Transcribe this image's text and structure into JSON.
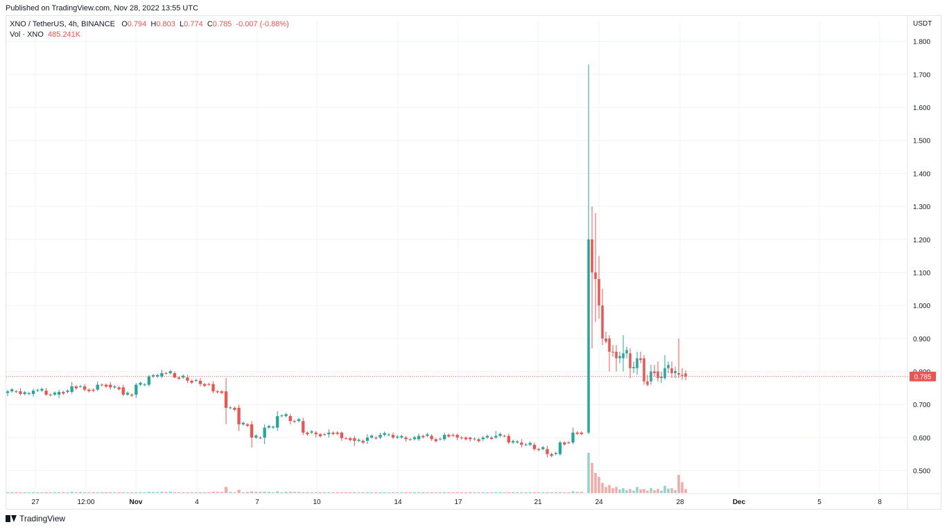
{
  "header": {
    "published": "Published on TradingView.com, Nov 28, 2022 13:55 UTC"
  },
  "legend": {
    "symbol": "XNO / TetherUS, 4h, BINANCE",
    "o_label": "O",
    "o_value": "0.794",
    "h_label": "H",
    "h_value": "0.803",
    "l_label": "L",
    "l_value": "0.774",
    "c_label": "C",
    "c_value": "0.785",
    "change": "-0.007 (-0.88%)",
    "vol_label": "Vol · XNO",
    "vol_value": "485.241K"
  },
  "footer": {
    "brand": "TradingView"
  },
  "colors": {
    "up": "#26a69a",
    "down": "#ef5350",
    "up_vol": "#8fd3c9",
    "down_vol": "#f6a8a6",
    "grid": "#f0f3fa",
    "text": "#131722"
  },
  "chart_data": {
    "type": "candlestick",
    "pair": "XNO / TetherUS",
    "interval": "4h",
    "exchange": "BINANCE",
    "currency_label": "USDT",
    "y_ticks": [
      "1.800",
      "1.700",
      "1.600",
      "1.500",
      "1.400",
      "1.300",
      "1.200",
      "1.100",
      "1.000",
      "0.900",
      "0.800",
      "0.700",
      "0.600",
      "0.500"
    ],
    "ylim": [
      0.43,
      1.86
    ],
    "x_ticks": [
      "27",
      "12:00",
      "Nov",
      "4",
      "7",
      "10",
      "14",
      "17",
      "21",
      "24",
      "28",
      "Dec",
      "5",
      "8"
    ],
    "bold_x_ticks": [
      "Nov",
      "Dec"
    ],
    "last_price": "0.785",
    "grid": true,
    "ohlc_anchors": [
      {
        "o": 0.735,
        "h": 0.745,
        "l": 0.725,
        "c": 0.74
      },
      {
        "o": 0.74,
        "h": 0.75,
        "l": 0.728,
        "c": 0.732
      },
      {
        "o": 0.732,
        "h": 0.748,
        "l": 0.724,
        "c": 0.742
      },
      {
        "o": 0.742,
        "h": 0.75,
        "l": 0.726,
        "c": 0.73
      },
      {
        "o": 0.73,
        "h": 0.745,
        "l": 0.72,
        "c": 0.738
      },
      {
        "o": 0.738,
        "h": 0.768,
        "l": 0.732,
        "c": 0.755
      },
      {
        "o": 0.755,
        "h": 0.762,
        "l": 0.74,
        "c": 0.745
      },
      {
        "o": 0.745,
        "h": 0.77,
        "l": 0.74,
        "c": 0.76
      },
      {
        "o": 0.76,
        "h": 0.768,
        "l": 0.745,
        "c": 0.752
      },
      {
        "o": 0.752,
        "h": 0.76,
        "l": 0.725,
        "c": 0.73
      },
      {
        "o": 0.73,
        "h": 0.765,
        "l": 0.72,
        "c": 0.76
      },
      {
        "o": 0.76,
        "h": 0.79,
        "l": 0.755,
        "c": 0.785
      },
      {
        "o": 0.785,
        "h": 0.805,
        "l": 0.78,
        "c": 0.795
      },
      {
        "o": 0.795,
        "h": 0.8,
        "l": 0.78,
        "c": 0.782
      },
      {
        "o": 0.782,
        "h": 0.79,
        "l": 0.765,
        "c": 0.772
      },
      {
        "o": 0.772,
        "h": 0.78,
        "l": 0.755,
        "c": 0.762
      },
      {
        "o": 0.762,
        "h": 0.77,
        "l": 0.735,
        "c": 0.74
      },
      {
        "o": 0.74,
        "h": 0.78,
        "l": 0.64,
        "c": 0.69
      },
      {
        "o": 0.69,
        "h": 0.7,
        "l": 0.62,
        "c": 0.64
      },
      {
        "o": 0.64,
        "h": 0.65,
        "l": 0.57,
        "c": 0.6
      },
      {
        "o": 0.6,
        "h": 0.64,
        "l": 0.58,
        "c": 0.63
      },
      {
        "o": 0.63,
        "h": 0.68,
        "l": 0.62,
        "c": 0.665
      },
      {
        "o": 0.665,
        "h": 0.672,
        "l": 0.64,
        "c": 0.65
      },
      {
        "o": 0.65,
        "h": 0.66,
        "l": 0.608,
        "c": 0.615
      },
      {
        "o": 0.615,
        "h": 0.62,
        "l": 0.6,
        "c": 0.61
      },
      {
        "o": 0.61,
        "h": 0.625,
        "l": 0.6,
        "c": 0.615
      },
      {
        "o": 0.615,
        "h": 0.618,
        "l": 0.59,
        "c": 0.598
      },
      {
        "o": 0.598,
        "h": 0.605,
        "l": 0.575,
        "c": 0.59
      },
      {
        "o": 0.59,
        "h": 0.61,
        "l": 0.58,
        "c": 0.6
      },
      {
        "o": 0.6,
        "h": 0.615,
        "l": 0.595,
        "c": 0.608
      },
      {
        "o": 0.608,
        "h": 0.615,
        "l": 0.595,
        "c": 0.6
      },
      {
        "o": 0.6,
        "h": 0.605,
        "l": 0.588,
        "c": 0.595
      },
      {
        "o": 0.595,
        "h": 0.612,
        "l": 0.59,
        "c": 0.605
      },
      {
        "o": 0.605,
        "h": 0.61,
        "l": 0.59,
        "c": 0.595
      },
      {
        "o": 0.595,
        "h": 0.615,
        "l": 0.59,
        "c": 0.608
      },
      {
        "o": 0.608,
        "h": 0.612,
        "l": 0.592,
        "c": 0.6
      },
      {
        "o": 0.6,
        "h": 0.602,
        "l": 0.588,
        "c": 0.595
      },
      {
        "o": 0.595,
        "h": 0.605,
        "l": 0.59,
        "c": 0.6
      },
      {
        "o": 0.6,
        "h": 0.62,
        "l": 0.596,
        "c": 0.605
      },
      {
        "o": 0.605,
        "h": 0.612,
        "l": 0.58,
        "c": 0.585
      },
      {
        "o": 0.585,
        "h": 0.595,
        "l": 0.57,
        "c": 0.578
      },
      {
        "o": 0.578,
        "h": 0.585,
        "l": 0.56,
        "c": 0.565
      },
      {
        "o": 0.565,
        "h": 0.575,
        "l": 0.54,
        "c": 0.55
      },
      {
        "o": 0.55,
        "h": 0.59,
        "l": 0.545,
        "c": 0.585
      },
      {
        "o": 0.585,
        "h": 0.63,
        "l": 0.58,
        "c": 0.615
      },
      {
        "o": 0.615,
        "h": 1.73,
        "l": 0.61,
        "c": 1.2
      },
      {
        "o": 1.2,
        "h": 1.3,
        "l": 0.87,
        "c": 1.1
      },
      {
        "o": 1.1,
        "h": 1.28,
        "l": 0.95,
        "c": 1.08
      },
      {
        "o": 1.08,
        "h": 1.15,
        "l": 0.96,
        "c": 1.0
      },
      {
        "o": 1.0,
        "h": 1.05,
        "l": 0.88,
        "c": 0.9
      },
      {
        "o": 0.9,
        "h": 0.91,
        "l": 0.8,
        "c": 0.86
      },
      {
        "o": 0.86,
        "h": 0.88,
        "l": 0.8,
        "c": 0.84
      },
      {
        "o": 0.84,
        "h": 0.91,
        "l": 0.8,
        "c": 0.855
      },
      {
        "o": 0.855,
        "h": 0.87,
        "l": 0.78,
        "c": 0.81
      },
      {
        "o": 0.81,
        "h": 0.86,
        "l": 0.79,
        "c": 0.84
      },
      {
        "o": 0.84,
        "h": 0.85,
        "l": 0.76,
        "c": 0.77
      },
      {
        "o": 0.77,
        "h": 0.82,
        "l": 0.76,
        "c": 0.8
      },
      {
        "o": 0.8,
        "h": 0.83,
        "l": 0.77,
        "c": 0.78
      },
      {
        "o": 0.78,
        "h": 0.85,
        "l": 0.775,
        "c": 0.81
      },
      {
        "o": 0.81,
        "h": 0.83,
        "l": 0.78,
        "c": 0.795
      },
      {
        "o": 0.795,
        "h": 0.9,
        "l": 0.78,
        "c": 0.79
      },
      {
        "o": 0.794,
        "h": 0.803,
        "l": 0.774,
        "c": 0.785
      }
    ],
    "volume_anchors": [
      0.02,
      0.02,
      0.02,
      0.02,
      0.02,
      0.03,
      0.02,
      0.02,
      0.02,
      0.02,
      0.02,
      0.03,
      0.03,
      0.02,
      0.02,
      0.02,
      0.03,
      0.15,
      0.08,
      0.04,
      0.03,
      0.04,
      0.03,
      0.02,
      0.02,
      0.02,
      0.02,
      0.02,
      0.02,
      0.02,
      0.02,
      0.02,
      0.02,
      0.02,
      0.02,
      0.02,
      0.02,
      0.02,
      0.02,
      0.02,
      0.02,
      0.02,
      0.02,
      0.02,
      0.04,
      1.0,
      0.75,
      0.5,
      0.4,
      0.25,
      0.2,
      0.15,
      0.12,
      0.1,
      0.15,
      0.1,
      0.12,
      0.1,
      0.18,
      0.12,
      0.45,
      0.1
    ]
  }
}
